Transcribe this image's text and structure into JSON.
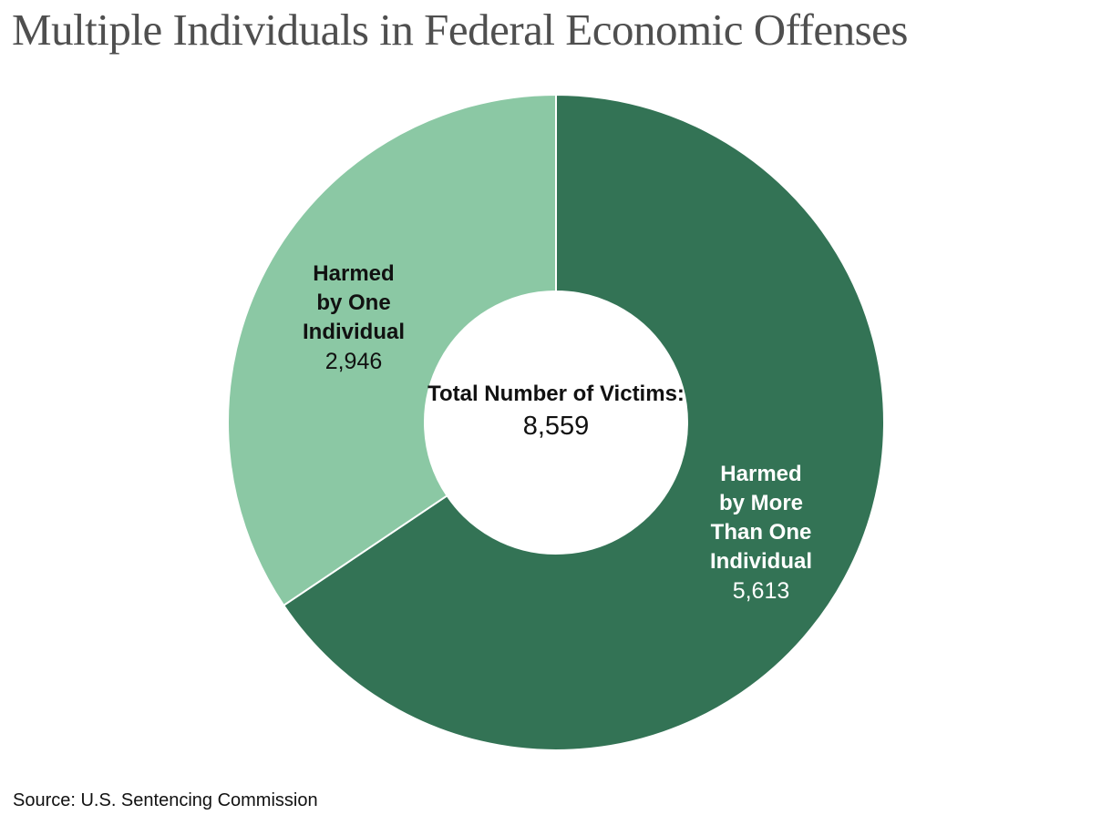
{
  "chart_data": {
    "type": "pie",
    "subtype": "donut",
    "title": "Multiple Individuals in Federal Economic Offenses",
    "source": "Source: U.S. Sentencing Commission",
    "total": 8559,
    "start_angle_deg": 0,
    "direction": "clockwise",
    "legend": "none",
    "center_label": {
      "line1": "Total Number of",
      "line2": "Victims:",
      "value": "8,559"
    },
    "slices": [
      {
        "name": "Harmed by More Than One Individual",
        "label_lines": [
          "Harmed",
          "by More",
          "Than One",
          "Individual"
        ],
        "value": 5613,
        "display_value": "5,613",
        "color": "#337355",
        "label_color": "#ffffff"
      },
      {
        "name": "Harmed by One Individual",
        "label_lines": [
          "Harmed",
          "by One",
          "Individual"
        ],
        "value": 2946,
        "display_value": "2,946",
        "color": "#8BC8A4",
        "label_color": "#111111"
      }
    ],
    "colors": {
      "title_gray": "#4f4f4f",
      "slice_gap_stroke": "#ffffff",
      "background": "#ffffff"
    }
  }
}
